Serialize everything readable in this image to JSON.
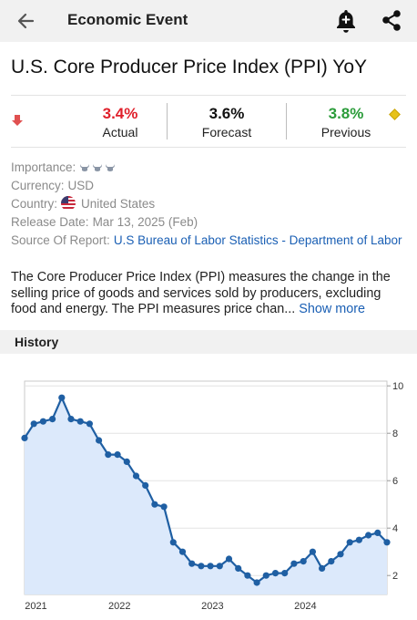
{
  "appbar": {
    "title": "Economic Event",
    "back_icon": "arrow-left-icon",
    "alert_icon": "bell-plus-icon",
    "share_icon": "share-icon"
  },
  "event": {
    "title": "U.S. Core Producer Price Index (PPI) YoY",
    "actual_value": "3.4%",
    "actual_label": "Actual",
    "forecast_value": "3.6%",
    "forecast_label": "Forecast",
    "previous_value": "3.8%",
    "previous_label": "Previous"
  },
  "details": {
    "importance_label": "Importance:",
    "importance_level": 3,
    "currency_label": "Currency:",
    "currency_value": "USD",
    "country_label": "Country:",
    "country_value": "United States",
    "release_label": "Release Date:",
    "release_value": "Mar 13, 2025 (Feb)",
    "source_label": "Source Of Report:",
    "source_value": "U.S Bureau of Labor Statistics - Department of Labor"
  },
  "description": {
    "text": "The Core Producer Price Index (PPI) measures the change in the selling price of goods and services sold by producers, excluding food and energy. The PPI measures price chan...",
    "show_more": "Show more"
  },
  "history": {
    "title": "History"
  },
  "colors": {
    "actual": "#e0202b",
    "previous": "#2b9c3a",
    "line": "#1f5fa3",
    "area": "#dce9fb",
    "link": "#1a5fb4"
  },
  "chart_data": {
    "type": "area",
    "x_labels": [
      "2021",
      "2022",
      "2023",
      "2024"
    ],
    "y_ticks": [
      "2",
      "4",
      "6",
      "8",
      "10"
    ],
    "ylim": [
      1.2,
      10.2
    ],
    "values": [
      7.8,
      8.4,
      8.5,
      8.6,
      9.5,
      8.6,
      8.5,
      8.4,
      7.7,
      7.1,
      7.1,
      6.8,
      6.2,
      5.8,
      5.0,
      4.9,
      3.4,
      3.0,
      2.5,
      2.4,
      2.4,
      2.4,
      2.7,
      2.3,
      2.0,
      1.7,
      2.0,
      2.1,
      2.1,
      2.5,
      2.6,
      3.0,
      2.3,
      2.6,
      2.9,
      3.4,
      3.5,
      3.7,
      3.8,
      3.4
    ]
  }
}
